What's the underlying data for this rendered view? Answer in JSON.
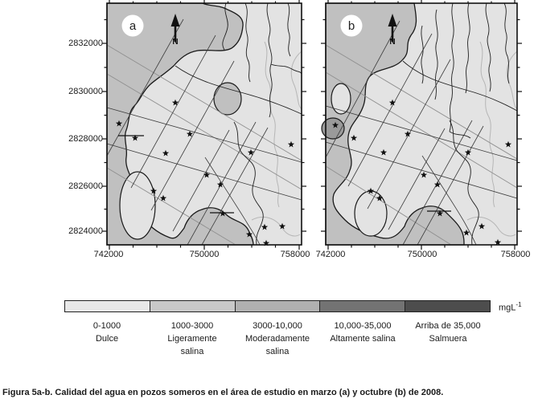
{
  "figure": {
    "caption": "Figura 5a-b. Calidad del agua en pozos someros en el área de estudio en marzo (a) y octubre (b) de 2008."
  },
  "axes": {
    "y_ticks": [
      "2832000",
      "2830000",
      "2828000",
      "2826000",
      "2824000"
    ],
    "x_ticks_a": [
      "742000",
      "750000",
      "758000"
    ],
    "x_ticks_b": [
      "742000",
      "750000",
      "758000"
    ]
  },
  "panels": {
    "a": {
      "label": "a",
      "north": "N"
    },
    "b": {
      "label": "b",
      "north": "N"
    }
  },
  "legend": {
    "unit_base": "mgL",
    "unit_exponent": "-1",
    "categories": [
      {
        "range": "0-1000",
        "name": "Dulce",
        "color": "#e8e8e8"
      },
      {
        "range": "1000-3000",
        "name": "Ligeramente salina",
        "color": "#c8c8c8"
      },
      {
        "range": "3000-10,000",
        "name": "Moderadamente salina",
        "color": "#b0b0b0"
      },
      {
        "range": "10,000-35,000",
        "name": "Altamente salina",
        "color": "#737373"
      },
      {
        "range": "Arriba de 35,000",
        "name": "Salmuera",
        "color": "#4d4d4d"
      }
    ]
  },
  "map_colors": {
    "fresh": "#e3e3e3",
    "slightly_saline": "#c0c0c0",
    "saline_spot": "#9a9a9a"
  },
  "wells": {
    "a": [
      [
        15,
        150
      ],
      [
        35,
        168
      ],
      [
        85,
        124
      ],
      [
        103,
        163
      ],
      [
        73,
        187
      ],
      [
        124,
        214
      ],
      [
        141,
        226
      ],
      [
        58,
        234
      ],
      [
        70,
        243
      ],
      [
        179,
        186
      ],
      [
        229,
        176
      ],
      [
        144,
        262
      ],
      [
        177,
        288
      ],
      [
        196,
        279
      ],
      [
        218,
        278
      ],
      [
        198,
        299
      ]
    ],
    "b": [
      [
        12,
        152
      ],
      [
        35,
        168
      ],
      [
        83,
        124
      ],
      [
        102,
        163
      ],
      [
        72,
        186
      ],
      [
        122,
        214
      ],
      [
        139,
        226
      ],
      [
        56,
        234
      ],
      [
        67,
        243
      ],
      [
        177,
        186
      ],
      [
        227,
        176
      ],
      [
        142,
        262
      ],
      [
        175,
        286
      ],
      [
        194,
        278
      ],
      [
        214,
        298
      ]
    ]
  }
}
